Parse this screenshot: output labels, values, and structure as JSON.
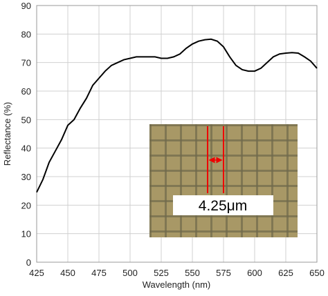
{
  "chart_data": {
    "type": "line",
    "x_label": "Wavelength (nm)",
    "y_label": "Reflectance (%)",
    "x": [
      425,
      430,
      435,
      440,
      445,
      450,
      455,
      460,
      465,
      470,
      475,
      480,
      485,
      490,
      495,
      500,
      505,
      510,
      515,
      520,
      525,
      530,
      535,
      540,
      545,
      550,
      555,
      560,
      565,
      570,
      575,
      580,
      585,
      590,
      595,
      600,
      605,
      610,
      615,
      620,
      625,
      630,
      635,
      640,
      645,
      650
    ],
    "values": [
      24.5,
      29,
      35,
      39,
      43,
      48,
      50,
      54,
      57.5,
      62,
      64.5,
      67,
      69,
      70,
      71,
      71.5,
      72,
      72,
      72,
      72,
      71.5,
      71.5,
      72,
      73,
      75,
      76.5,
      77.5,
      78,
      78.2,
      77.5,
      75.5,
      72,
      69,
      67.5,
      67,
      67,
      68,
      70,
      72,
      73,
      73.3,
      73.5,
      73.3,
      72,
      70.5,
      68
    ],
    "color": "#000000",
    "xlim": [
      425,
      650
    ],
    "xticks": [
      425,
      450,
      475,
      500,
      525,
      550,
      575,
      600,
      625,
      650
    ],
    "ylim": [
      0,
      90
    ],
    "yticks": [
      0,
      10,
      20,
      30,
      40,
      50,
      60,
      70,
      80,
      90
    ],
    "grid": true,
    "inset_label": "4.25μm"
  }
}
